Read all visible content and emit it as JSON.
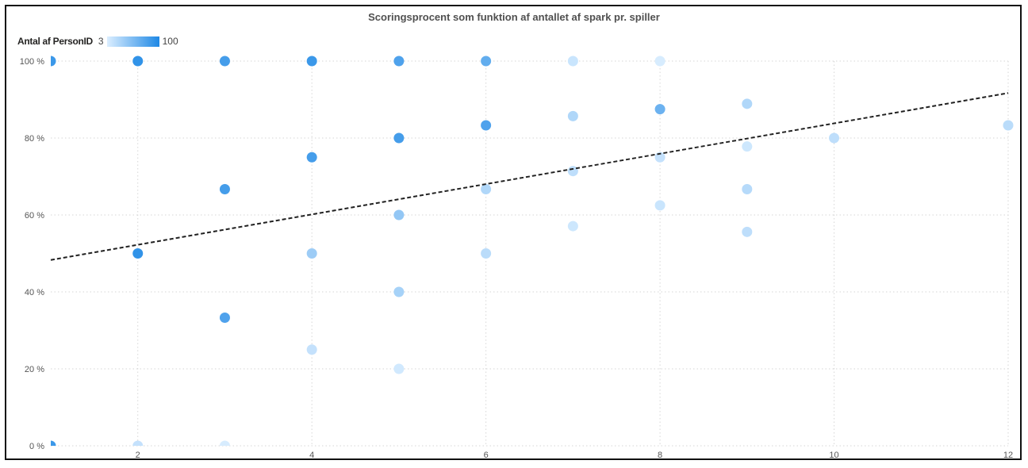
{
  "chart_data": {
    "type": "scatter",
    "title": "Scoringsprocent som funktion af antallet af spark pr. spiller",
    "xlabel": "",
    "ylabel": "",
    "xlim": [
      1,
      12
    ],
    "ylim": [
      0,
      1
    ],
    "x_ticks": [
      2,
      4,
      6,
      8,
      10,
      12
    ],
    "y_ticks": [
      0,
      0.2,
      0.4,
      0.6,
      0.8,
      1.0
    ],
    "y_tick_labels": [
      "0 %",
      "20 %",
      "40 %",
      "60 %",
      "80 %",
      "100 %"
    ],
    "grid": true,
    "color_legend": {
      "title": "Antal af PersonID",
      "min_label": "3",
      "max_label": "100",
      "min_value": 3,
      "max_value": 100,
      "color_low": "#dbeeff",
      "color_high": "#1e88e5"
    },
    "trendline": {
      "style": "dashed",
      "color": "#222222",
      "x": [
        1,
        12
      ],
      "y": [
        0.483,
        0.917
      ]
    },
    "points": [
      {
        "x": 1,
        "y": 1.0,
        "count": 85
      },
      {
        "x": 1,
        "y": 0.0,
        "count": 85
      },
      {
        "x": 2,
        "y": 1.0,
        "count": 90
      },
      {
        "x": 2,
        "y": 0.5,
        "count": 90
      },
      {
        "x": 2,
        "y": 0.0,
        "count": 15
      },
      {
        "x": 3,
        "y": 1.0,
        "count": 80
      },
      {
        "x": 3,
        "y": 0.667,
        "count": 80
      },
      {
        "x": 3,
        "y": 0.333,
        "count": 75
      },
      {
        "x": 3,
        "y": 0.0,
        "count": 5
      },
      {
        "x": 4,
        "y": 1.0,
        "count": 85
      },
      {
        "x": 4,
        "y": 0.75,
        "count": 80
      },
      {
        "x": 4,
        "y": 0.5,
        "count": 35
      },
      {
        "x": 4,
        "y": 0.25,
        "count": 15
      },
      {
        "x": 5,
        "y": 1.0,
        "count": 75
      },
      {
        "x": 5,
        "y": 0.8,
        "count": 80
      },
      {
        "x": 5,
        "y": 0.6,
        "count": 40
      },
      {
        "x": 5,
        "y": 0.4,
        "count": 30
      },
      {
        "x": 5,
        "y": 0.2,
        "count": 8
      },
      {
        "x": 6,
        "y": 1.0,
        "count": 65
      },
      {
        "x": 6,
        "y": 0.833,
        "count": 75
      },
      {
        "x": 6,
        "y": 0.667,
        "count": 25
      },
      {
        "x": 6,
        "y": 0.5,
        "count": 20
      },
      {
        "x": 7,
        "y": 1.0,
        "count": 12
      },
      {
        "x": 7,
        "y": 0.857,
        "count": 25
      },
      {
        "x": 7,
        "y": 0.714,
        "count": 18
      },
      {
        "x": 7,
        "y": 0.571,
        "count": 10
      },
      {
        "x": 8,
        "y": 1.0,
        "count": 5
      },
      {
        "x": 8,
        "y": 0.875,
        "count": 60
      },
      {
        "x": 8,
        "y": 0.75,
        "count": 15
      },
      {
        "x": 8,
        "y": 0.625,
        "count": 12
      },
      {
        "x": 9,
        "y": 0.889,
        "count": 25
      },
      {
        "x": 9,
        "y": 0.778,
        "count": 10
      },
      {
        "x": 9,
        "y": 0.667,
        "count": 22
      },
      {
        "x": 9,
        "y": 0.556,
        "count": 18
      },
      {
        "x": 10,
        "y": 0.8,
        "count": 18
      },
      {
        "x": 12,
        "y": 0.833,
        "count": 20
      }
    ]
  }
}
